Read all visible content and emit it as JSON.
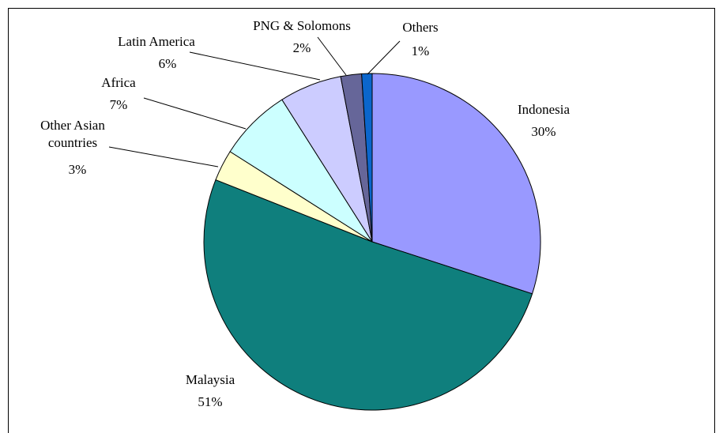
{
  "chart_data": {
    "type": "pie",
    "categories": [
      "Indonesia",
      "Malaysia",
      "Other Asian countries",
      "Africa",
      "Latin America",
      "PNG & Solomons",
      "Others"
    ],
    "values": [
      30,
      51,
      3,
      7,
      6,
      2,
      1
    ],
    "value_labels": [
      "30%",
      "51%",
      "3%",
      "7%",
      "6%",
      "2%",
      "1%"
    ],
    "colors": [
      "#9999ff",
      "#0f7f7d",
      "#ffffcc",
      "#ccffff",
      "#ccccff",
      "#666699",
      "#0b66cc"
    ]
  }
}
